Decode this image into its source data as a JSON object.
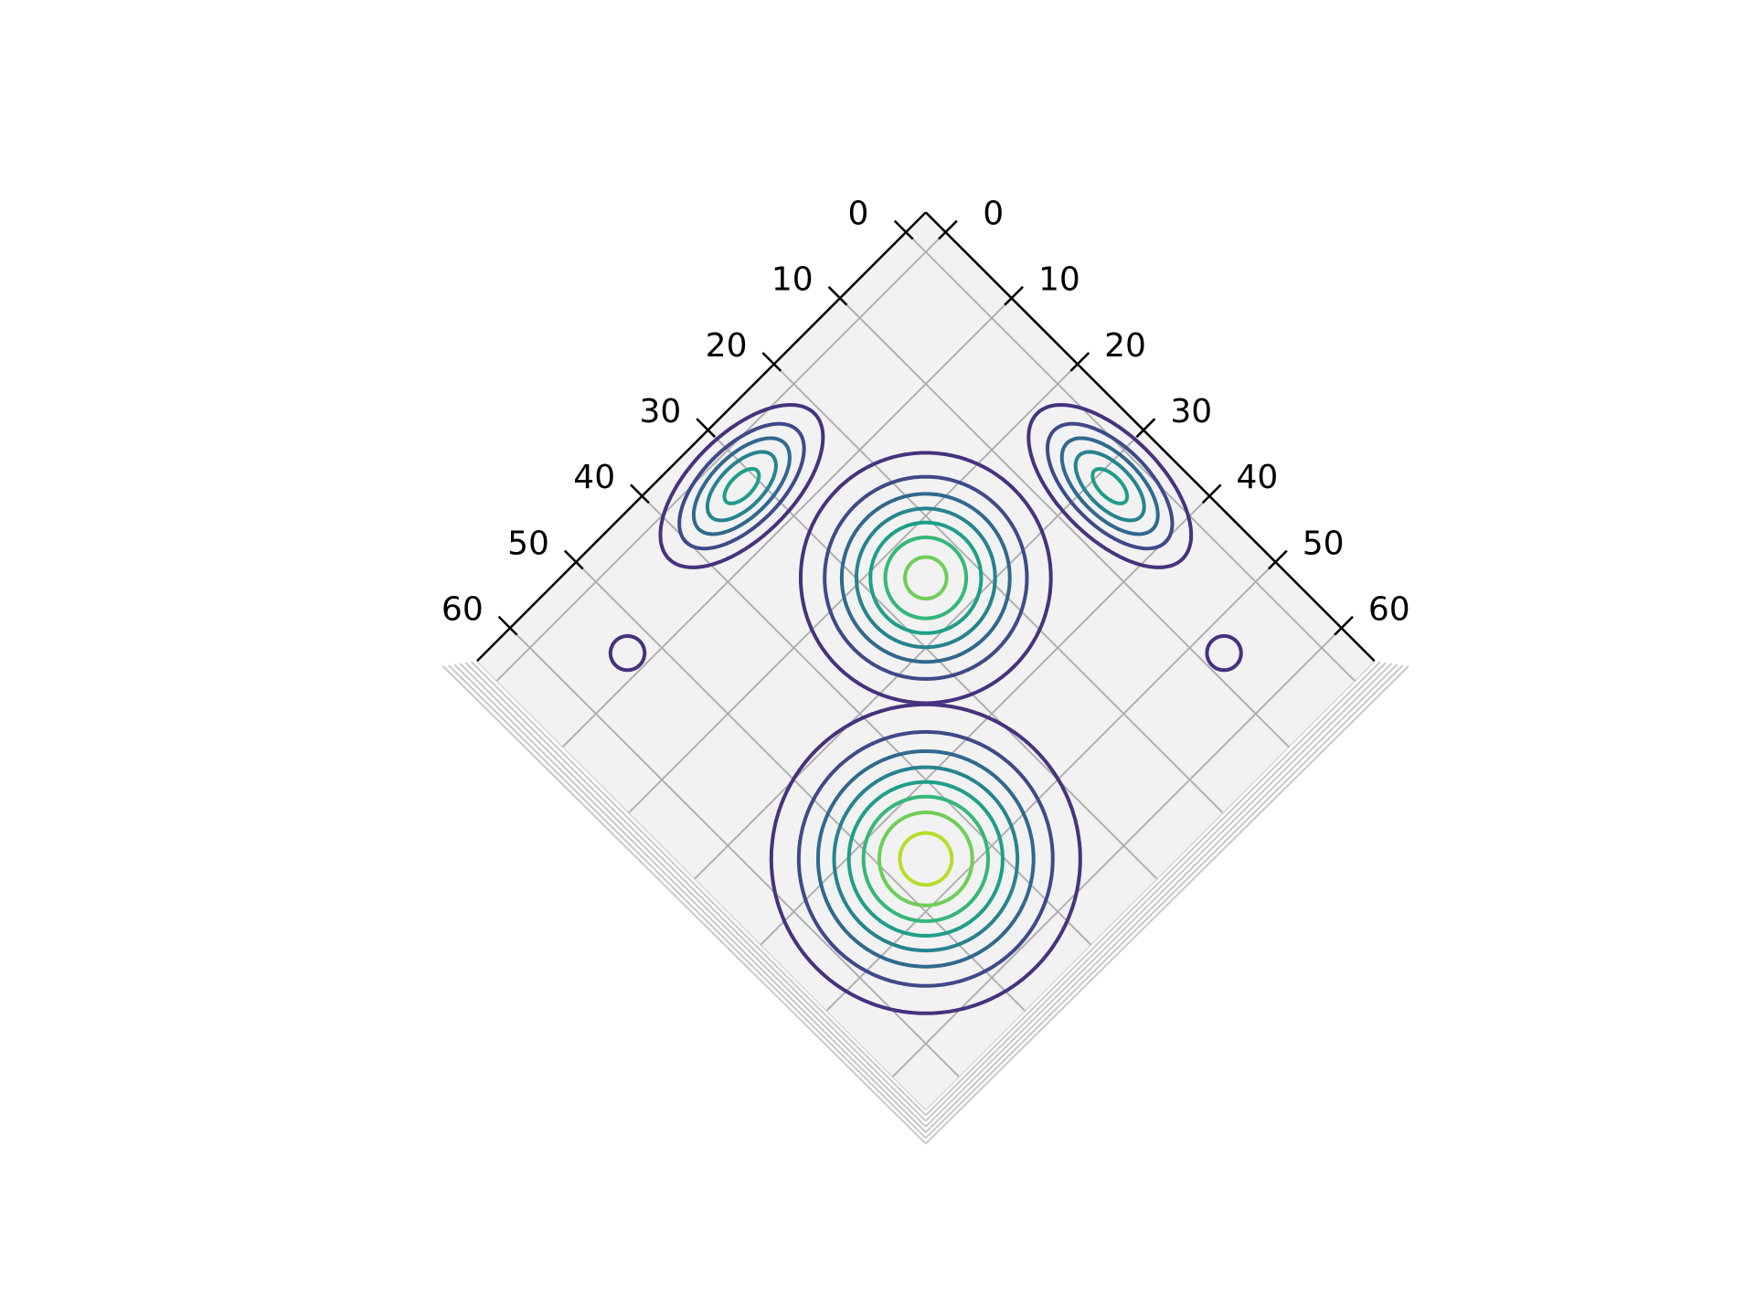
{
  "chart_data": {
    "type": "contour3d",
    "xlim": [
      -3,
      65
    ],
    "ylim": [
      -3,
      65
    ],
    "xticks": [
      0,
      10,
      20,
      30,
      40,
      50,
      60
    ],
    "yticks": [
      0,
      10,
      20,
      30,
      40,
      50,
      60
    ],
    "grid": true,
    "levels": [
      1,
      2,
      3,
      4,
      5,
      6,
      7,
      8
    ],
    "colors": [
      "#46327e",
      "#3e4a89",
      "#31688e",
      "#26838f",
      "#1f9e89",
      "#35b779",
      "#6ece58",
      "#b5de2b"
    ],
    "peaks": [
      {
        "x": 46,
        "y": 46,
        "height": 8.5,
        "sigma": [
          8.0,
          8.0
        ]
      },
      {
        "x": 24.7,
        "y": 24.7,
        "height": 7.4,
        "sigma": [
          6.7,
          6.7
        ]
      },
      {
        "x": 31.7,
        "y": 3.8,
        "height": 5.4,
        "sigma": [
          6.0,
          3.0
        ]
      },
      {
        "x": 3.8,
        "y": 31.7,
        "height": 5.4,
        "sigma": [
          3.0,
          6.0
        ]
      },
      {
        "x": 53,
        "y": 7.8,
        "height": 1.1,
        "sigma": [
          4.2,
          4.2
        ]
      },
      {
        "x": 7.8,
        "y": 53,
        "height": 1.1,
        "sigma": [
          4.2,
          4.2
        ]
      }
    ]
  }
}
